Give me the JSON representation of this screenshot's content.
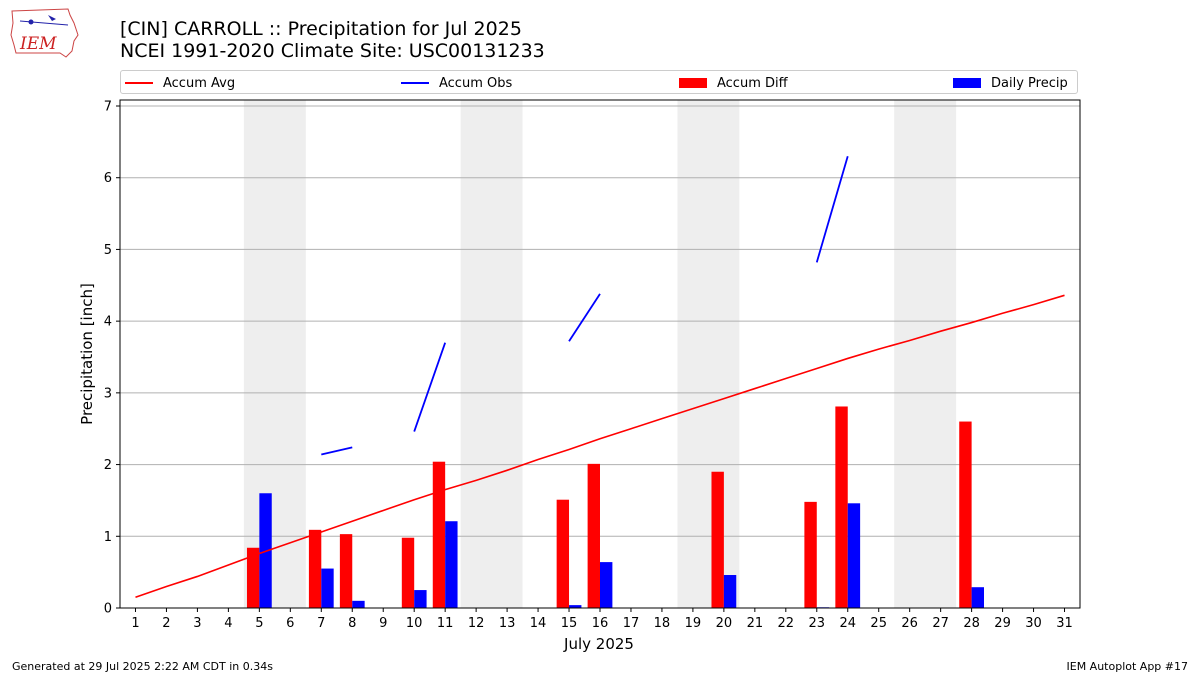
{
  "header": {
    "title_line1": "[CIN] CARROLL :: Precipitation for Jul 2025",
    "title_line2": "NCEI 1991-2020 Climate Site: USC00131233"
  },
  "logo": {
    "text": "IEM",
    "icon": "iem-iowa-logo",
    "color": "#cc2222"
  },
  "legend": {
    "items": [
      {
        "label": "Accum Avg",
        "kind": "line",
        "color": "#ff0000"
      },
      {
        "label": "Accum Obs",
        "kind": "line",
        "color": "#0000ff"
      },
      {
        "label": "Accum Diff",
        "kind": "box",
        "color": "#ff0000"
      },
      {
        "label": "Daily Precip",
        "kind": "box",
        "color": "#0000ff"
      }
    ],
    "placement": "top"
  },
  "chart_data": {
    "type": "bar",
    "xlabel": "July 2025",
    "ylabel": "Precipitation [inch]",
    "ylim": [
      0,
      7
    ],
    "yticks": [
      0,
      1,
      2,
      3,
      4,
      5,
      6,
      7
    ],
    "xlim": [
      0.5,
      31.5
    ],
    "x": [
      1,
      2,
      3,
      4,
      5,
      6,
      7,
      8,
      9,
      10,
      11,
      12,
      13,
      14,
      15,
      16,
      17,
      18,
      19,
      20,
      21,
      22,
      23,
      24,
      25,
      26,
      27,
      28,
      29,
      30,
      31
    ],
    "grid": "horizontal",
    "weekend_shading": [
      [
        4.5,
        6.5
      ],
      [
        11.5,
        13.5
      ],
      [
        18.5,
        20.5
      ],
      [
        25.5,
        27.5
      ]
    ],
    "weekend_color": "#eeeeee",
    "series": [
      {
        "name": "Accum Avg",
        "kind": "line",
        "color": "#ff0000",
        "values": [
          0.15,
          0.3,
          0.44,
          0.6,
          0.76,
          0.91,
          1.06,
          1.21,
          1.36,
          1.51,
          1.65,
          1.78,
          1.92,
          2.07,
          2.21,
          2.36,
          2.5,
          2.64,
          2.78,
          2.92,
          3.06,
          3.2,
          3.34,
          3.48,
          3.61,
          3.73,
          3.86,
          3.98,
          4.11,
          4.23,
          4.36
        ]
      },
      {
        "name": "Accum Obs",
        "kind": "segments",
        "color": "#0000ff",
        "segments": [
          {
            "x": [
              7,
              8
            ],
            "values": [
              2.14,
              2.24
            ]
          },
          {
            "x": [
              10,
              11
            ],
            "values": [
              2.46,
              3.7
            ]
          },
          {
            "x": [
              15,
              16
            ],
            "values": [
              3.72,
              4.38
            ]
          },
          {
            "x": [
              23,
              24
            ],
            "values": [
              4.82,
              6.3
            ]
          }
        ]
      },
      {
        "name": "Accum Diff",
        "kind": "bar",
        "color": "#ff0000",
        "x": [
          5,
          7,
          8,
          10,
          11,
          15,
          16,
          20,
          23,
          24,
          28
        ],
        "values": [
          0.84,
          1.09,
          1.03,
          0.98,
          2.04,
          1.51,
          2.01,
          1.9,
          1.48,
          2.81,
          2.6
        ]
      },
      {
        "name": "Daily Precip",
        "kind": "bar",
        "color": "#0000ff",
        "x": [
          5,
          7,
          8,
          10,
          11,
          15,
          16,
          20,
          23,
          24,
          28
        ],
        "values": [
          1.6,
          0.55,
          0.1,
          0.25,
          1.21,
          0.04,
          0.64,
          0.46,
          0.01,
          1.46,
          0.29
        ]
      }
    ]
  },
  "footer": {
    "left": "Generated at 29 Jul 2025 2:22 AM CDT in 0.34s",
    "right": "IEM Autoplot App #17"
  }
}
